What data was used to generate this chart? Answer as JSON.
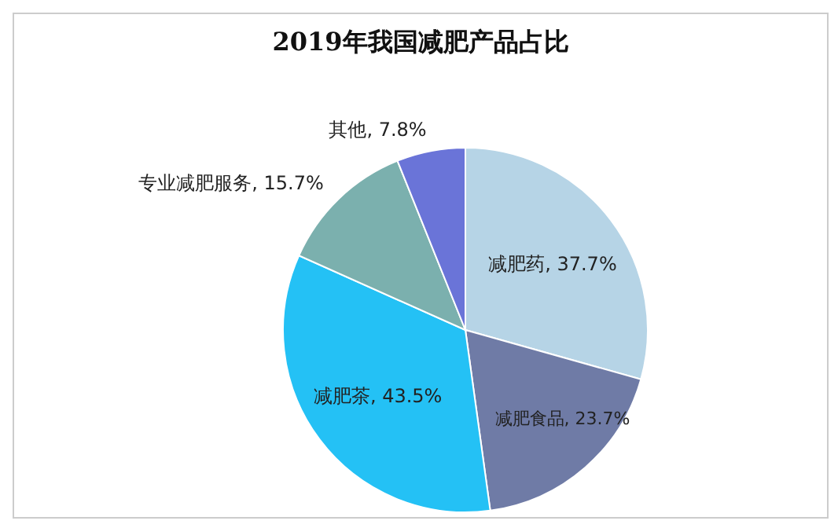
{
  "chart_data": {
    "type": "pie",
    "title": "2019年我国减肥产品占比",
    "categories": [
      "减肥药",
      "减肥食品",
      "减肥茶",
      "专业减肥服务",
      "其他"
    ],
    "values": [
      37.7,
      23.7,
      43.5,
      15.7,
      7.8
    ],
    "value_labels": [
      "37.7%",
      "23.7%",
      "43.5%",
      "15.7%",
      "7.8%"
    ],
    "colors": [
      "#b6d4e6",
      "#6f7ba6",
      "#24c1f5",
      "#7bb0ae",
      "#6a74d8"
    ],
    "legend": false
  }
}
